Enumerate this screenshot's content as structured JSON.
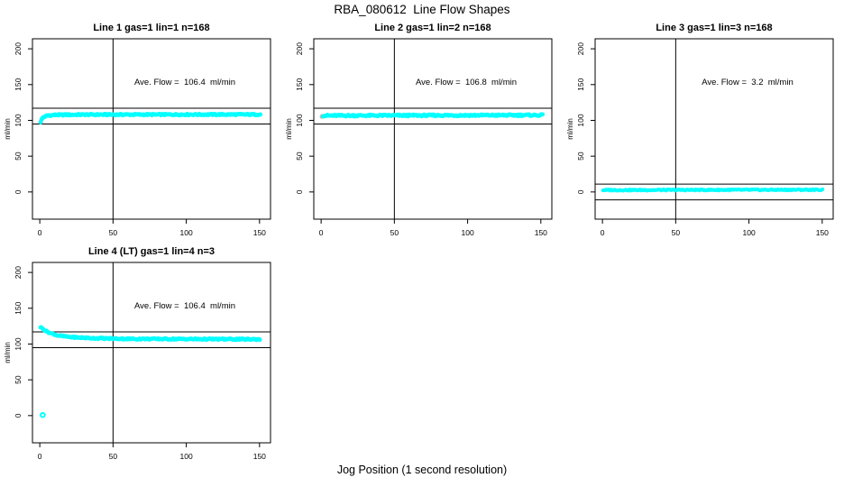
{
  "page": {
    "title": "RBA_080612  Line Flow Shapes",
    "xlabel": "Jog Position (1 second resolution)",
    "background": "#FFFFFF",
    "data_color": "#00FFFF",
    "startup_color": "#FF9D9D",
    "line_color": "#000000"
  },
  "chart_data": [
    {
      "type": "scatter",
      "title": "Line 1 gas=1 lin=1 n=168",
      "annotation": "Ave. Flow =  106.4  ml/min",
      "ave_flow": 106.4,
      "n": 168,
      "ylabel": "ml/min",
      "x_ticks": [
        0,
        50,
        100,
        150
      ],
      "y_ticks": [
        0,
        50,
        100,
        150,
        200
      ],
      "xlim": [
        -5,
        157.5
      ],
      "ylim": [
        -38,
        214
      ],
      "vline": 50,
      "hlines": [
        117,
        95
      ],
      "series": [
        {
          "name": "startup-flow",
          "color": "#FF9D9D",
          "points": [
            [
              0.5,
              97.5
            ],
            [
              0.9,
              99.5
            ]
          ],
          "r": 2.4
        },
        {
          "name": "flow-band",
          "color": "#00FFFF",
          "x_start": 0.6,
          "x_end": 151,
          "step": 0.7,
          "r": 2.4,
          "jitter": 0.9,
          "seed": 1,
          "profile": [
            [
              0.5,
              97.5
            ],
            [
              1.2,
              101
            ],
            [
              2.5,
              104.5
            ],
            [
              5,
              106.5
            ],
            [
              10,
              107.6
            ],
            [
              30,
              108
            ],
            [
              151,
              108.2
            ]
          ]
        }
      ],
      "extra_points": []
    },
    {
      "type": "scatter",
      "title": "Line 2 gas=1 lin=2 n=168",
      "annotation": "Ave. Flow =  106.8  ml/min",
      "ave_flow": 106.8,
      "n": 168,
      "ylabel": "ml/min",
      "x_ticks": [
        0,
        50,
        100,
        150
      ],
      "y_ticks": [
        0,
        50,
        100,
        150,
        200
      ],
      "xlim": [
        -5,
        157.5
      ],
      "ylim": [
        -38,
        214
      ],
      "vline": 50,
      "hlines": [
        117,
        95
      ],
      "series": [
        {
          "name": "startup-flow",
          "color": "#FF9D9D",
          "points": [
            [
              0.5,
              105.2
            ],
            [
              0.9,
              106
            ],
            [
              1.4,
              105.6
            ],
            [
              2.2,
              106.2
            ]
          ],
          "r": 2.4
        },
        {
          "name": "flow-band",
          "color": "#00FFFF",
          "x_start": 1.2,
          "x_end": 151,
          "step": 0.7,
          "r": 2.4,
          "jitter": 1.1,
          "seed": 2,
          "profile": [
            [
              0.5,
              106.6
            ],
            [
              151,
              107.3
            ]
          ]
        }
      ],
      "extra_points": []
    },
    {
      "type": "scatter",
      "title": "Line 3 gas=1 lin=3 n=168",
      "annotation": "Ave. Flow =  3.2  ml/min",
      "ave_flow": 3.2,
      "n": 168,
      "ylabel": "ml/min",
      "x_ticks": [
        0,
        50,
        100,
        150
      ],
      "y_ticks": [
        0,
        50,
        100,
        150,
        200
      ],
      "xlim": [
        -5,
        157.5
      ],
      "ylim": [
        -38,
        214
      ],
      "vline": 50,
      "hlines": [
        11,
        -11
      ],
      "series": [
        {
          "name": "flow-band",
          "color": "#00FFFF",
          "x_start": 0.6,
          "x_end": 151,
          "step": 0.7,
          "r": 2.1,
          "jitter": 0.8,
          "seed": 3,
          "profile": [
            [
              0.5,
              2.6
            ],
            [
              151,
              3.1
            ]
          ]
        }
      ],
      "extra_points": []
    },
    {
      "type": "scatter",
      "title": "Line 4 (LT) gas=1 lin=4 n=3",
      "annotation": "Ave. Flow =  106.4  ml/min",
      "ave_flow": 106.4,
      "n": 3,
      "ylabel": "ml/min",
      "x_ticks": [
        0,
        50,
        100,
        150
      ],
      "y_ticks": [
        0,
        50,
        100,
        150,
        200
      ],
      "xlim": [
        -5,
        157.5
      ],
      "ylim": [
        -38,
        214
      ],
      "vline": 50,
      "hlines": [
        117,
        95
      ],
      "series": [
        {
          "name": "flow-band",
          "color": "#00FFFF",
          "x_start": 0.6,
          "x_end": 151,
          "step": 0.7,
          "r": 2.4,
          "jitter": 0.9,
          "seed": 4,
          "profile": [
            [
              0.5,
              124
            ],
            [
              2,
              121.5
            ],
            [
              4,
              118.5
            ],
            [
              7,
              115.5
            ],
            [
              12,
              112
            ],
            [
              20,
              109.8
            ],
            [
              35,
              108.2
            ],
            [
              60,
              107.2
            ],
            [
              151,
              106.6
            ]
          ]
        }
      ],
      "extra_points": [
        {
          "x": 2,
          "y": 0.8,
          "r": 2.3,
          "open": true
        }
      ]
    }
  ]
}
